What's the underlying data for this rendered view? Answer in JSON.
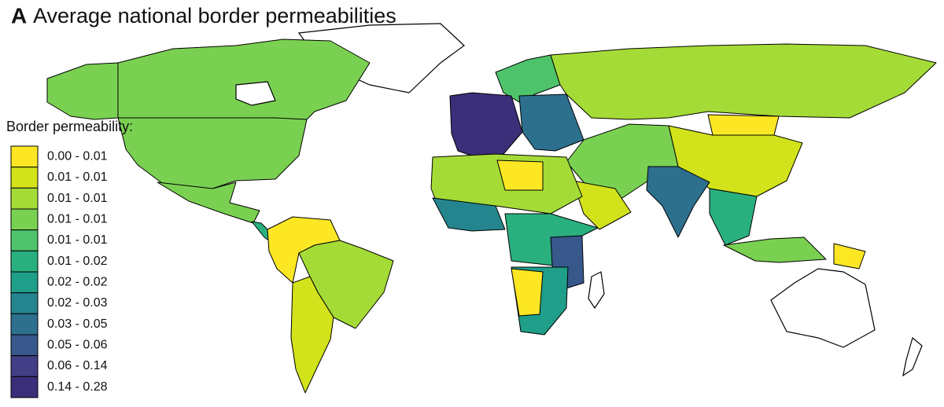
{
  "panel_label": "A",
  "title": "Average national border permeabilities",
  "legend": {
    "title": "Border permeability:",
    "entries": [
      {
        "label": "0.00 - 0.01",
        "color": "#fde725"
      },
      {
        "label": "0.01 - 0.01",
        "color": "#d2e21b"
      },
      {
        "label": "0.01 - 0.01",
        "color": "#a5db36"
      },
      {
        "label": "0.01 - 0.01",
        "color": "#7ad151"
      },
      {
        "label": "0.01 - 0.01",
        "color": "#4ec36b"
      },
      {
        "label": "0.01 - 0.02",
        "color": "#2ab07f"
      },
      {
        "label": "0.02 - 0.02",
        "color": "#1f9e89"
      },
      {
        "label": "0.02 - 0.03",
        "color": "#25858e"
      },
      {
        "label": "0.03 - 0.05",
        "color": "#2d708e"
      },
      {
        "label": "0.05 - 0.06",
        "color": "#38588c"
      },
      {
        "label": "0.06 - 0.14",
        "color": "#433e85"
      },
      {
        "label": "0.14 - 0.28",
        "color": "#3b2f7a"
      }
    ]
  }
}
